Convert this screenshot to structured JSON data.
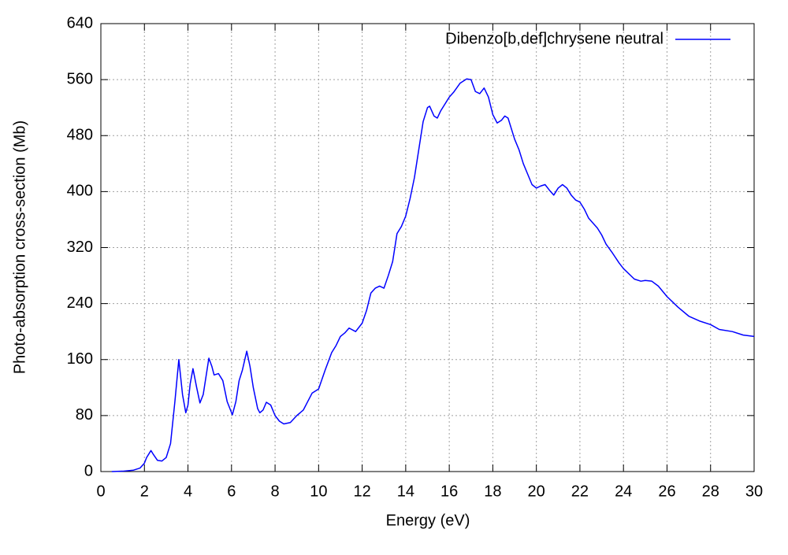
{
  "chart_data": {
    "type": "line",
    "xlabel": "Energy (eV)",
    "ylabel": "Photo-absorption cross-section (Mb)",
    "x": [
      0.5,
      1,
      1.5,
      1.8,
      2,
      2.1,
      2.3,
      2.4,
      2.6,
      2.8,
      3.0,
      3.2,
      3.4,
      3.58,
      3.75,
      3.9,
      4.0,
      4.1,
      4.23,
      4.4,
      4.55,
      4.7,
      4.96,
      5.1,
      5.2,
      5.4,
      5.6,
      5.8,
      6.04,
      6.2,
      6.35,
      6.5,
      6.7,
      6.85,
      7.0,
      7.2,
      7.3,
      7.45,
      7.6,
      7.8,
      8.0,
      8.2,
      8.4,
      8.7,
      9.0,
      9.3,
      9.5,
      9.7,
      10.0,
      10.3,
      10.6,
      10.8,
      11.0,
      11.2,
      11.4,
      11.7,
      12.0,
      12.2,
      12.4,
      12.6,
      12.8,
      13.0,
      13.2,
      13.4,
      13.6,
      13.8,
      14.0,
      14.2,
      14.4,
      14.6,
      14.8,
      15.0,
      15.1,
      15.3,
      15.45,
      15.6,
      15.8,
      16.0,
      16.2,
      16.5,
      16.8,
      17.0,
      17.2,
      17.4,
      17.6,
      17.8,
      18.0,
      18.2,
      18.4,
      18.55,
      18.7,
      19.0,
      19.2,
      19.4,
      19.6,
      19.8,
      20.0,
      20.2,
      20.4,
      20.6,
      20.8,
      21.0,
      21.2,
      21.4,
      21.6,
      21.8,
      22.0,
      22.2,
      22.4,
      22.6,
      22.8,
      23.0,
      23.2,
      23.5,
      23.8,
      24.0,
      24.5,
      24.8,
      25.0,
      25.3,
      25.6,
      26.0,
      26.5,
      27.0,
      27.5,
      28.0,
      28.4,
      29.0,
      29.5,
      30.0
    ],
    "series": [
      {
        "name": "Dibenzo[b,def]chrysene neutral",
        "color": "#0000ff",
        "values": [
          0,
          0.5,
          2,
          5,
          12,
          20,
          30,
          25,
          16,
          15,
          20,
          40,
          100,
          160,
          110,
          84,
          95,
          125,
          147,
          120,
          98,
          110,
          162,
          150,
          138,
          140,
          130,
          100,
          81,
          100,
          130,
          145,
          172,
          150,
          120,
          90,
          84,
          88,
          99,
          95,
          80,
          72,
          68,
          70,
          80,
          88,
          100,
          112,
          118,
          145,
          170,
          180,
          193,
          198,
          205,
          200,
          212,
          230,
          255,
          262,
          265,
          262,
          280,
          300,
          340,
          350,
          365,
          390,
          420,
          460,
          500,
          520,
          522,
          508,
          505,
          515,
          525,
          535,
          542,
          555,
          561,
          560,
          543,
          540,
          548,
          535,
          510,
          498,
          502,
          508,
          505,
          475,
          460,
          440,
          425,
          410,
          405,
          408,
          410,
          402,
          395,
          405,
          410,
          405,
          395,
          388,
          385,
          375,
          362,
          355,
          348,
          338,
          325,
          312,
          298,
          290,
          275,
          272,
          273,
          272,
          265,
          250,
          235,
          222,
          215,
          210,
          203,
          200,
          195,
          193
        ]
      }
    ],
    "xlim": [
      0,
      30
    ],
    "ylim": [
      0,
      640
    ],
    "xticks": [
      0,
      2,
      4,
      6,
      8,
      10,
      12,
      14,
      16,
      18,
      20,
      22,
      24,
      26,
      28,
      30
    ],
    "yticks": [
      0,
      80,
      160,
      240,
      320,
      400,
      480,
      560,
      640
    ],
    "grid": true,
    "legend": "top-right"
  }
}
